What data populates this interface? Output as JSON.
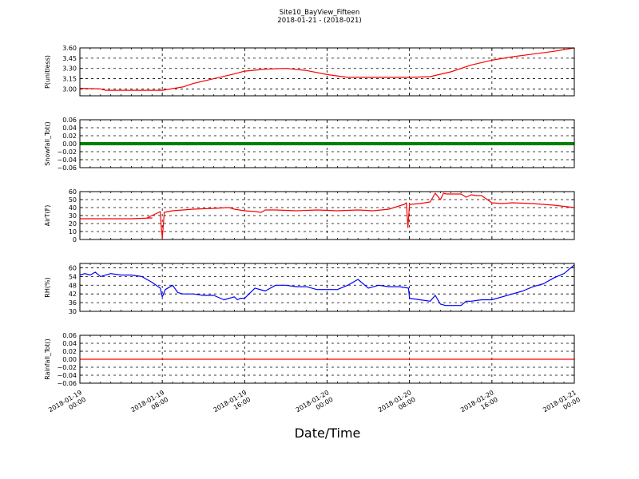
{
  "figure": {
    "title_line1": "Site10_BayView_Fifteen",
    "title_line2": "2018-01-21 - (2018-021)",
    "xlabel": "Date/Time"
  },
  "chart_data": [
    {
      "type": "line",
      "ylabel": "P(unitless)",
      "ylim": [
        2.9,
        3.6
      ],
      "yticks": [
        "3.60",
        "3.45",
        "3.30",
        "3.15",
        "3.00"
      ],
      "ytick_values": [
        3.6,
        3.45,
        3.3,
        3.15,
        3.0
      ],
      "grid": true,
      "color": "#ff0000",
      "x_hours": [
        0,
        2,
        2.5,
        3,
        4,
        6,
        8,
        10,
        11,
        13,
        15,
        16,
        18,
        20,
        22,
        24,
        26,
        28,
        30,
        32,
        34,
        36,
        38,
        40,
        42,
        44,
        46,
        48
      ],
      "values": [
        3.01,
        3.0,
        2.98,
        2.98,
        2.98,
        2.98,
        2.98,
        3.03,
        3.08,
        3.15,
        3.22,
        3.26,
        3.29,
        3.3,
        3.27,
        3.21,
        3.17,
        3.17,
        3.17,
        3.17,
        3.18,
        3.25,
        3.35,
        3.42,
        3.47,
        3.51,
        3.55,
        3.6
      ]
    },
    {
      "type": "line",
      "ylabel": "Snowfall_Tot()",
      "ylim": [
        -0.06,
        0.06
      ],
      "yticks": [
        "0.06",
        "0.04",
        "0.02",
        "0.00",
        "−0.02",
        "−0.04",
        "−0.06"
      ],
      "ytick_values": [
        0.06,
        0.04,
        0.02,
        0.0,
        -0.02,
        -0.04,
        -0.06
      ],
      "grid": true,
      "color": "#008000",
      "x_hours": [
        0,
        48
      ],
      "values": [
        0,
        0
      ]
    },
    {
      "type": "line",
      "ylabel": "AirT(F)",
      "ylim": [
        0,
        60
      ],
      "yticks": [
        "60",
        "50",
        "40",
        "30",
        "20",
        "10",
        "0"
      ],
      "ytick_values": [
        60,
        50,
        40,
        30,
        20,
        10,
        0
      ],
      "grid": true,
      "color": "#ff0000",
      "x_hours": [
        0,
        3,
        5,
        7,
        6.5,
        7.5,
        7.8,
        7.9,
        8.0,
        8.2,
        9,
        11,
        13,
        14.5,
        15,
        16,
        17,
        17.6,
        18,
        19,
        21,
        23,
        25,
        27,
        28.5,
        30,
        31.5,
        31.7,
        31.85,
        32,
        33,
        34,
        34.5,
        35,
        35.3,
        35.6,
        36,
        37,
        37.5,
        38,
        38.5,
        39,
        40,
        41,
        42,
        44,
        46,
        48
      ],
      "values": [
        26,
        26,
        26,
        27,
        27,
        33,
        35,
        15,
        2,
        34,
        36,
        38,
        39,
        40,
        38,
        36,
        35,
        34,
        37,
        37,
        36,
        37,
        36,
        37,
        36,
        38,
        44,
        46,
        15,
        44,
        45,
        47,
        58,
        50,
        58,
        57,
        57,
        57,
        53,
        56,
        55,
        55,
        46,
        45,
        46,
        45,
        43,
        40
      ]
    },
    {
      "type": "line",
      "ylabel": "RH(%)",
      "ylim": [
        30,
        63
      ],
      "yticks": [
        "60",
        "54",
        "48",
        "42",
        "36",
        "30"
      ],
      "ytick_values": [
        60,
        54,
        48,
        42,
        36,
        30
      ],
      "grid": true,
      "color": "#0000ff",
      "x_hours": [
        0,
        0.5,
        1,
        1.5,
        2,
        3,
        4,
        5,
        6,
        7,
        7.8,
        8,
        8.3,
        9,
        9.5,
        10,
        11,
        12,
        13,
        14,
        15,
        15.3,
        15.6,
        16,
        17,
        18,
        19,
        20,
        21,
        22,
        23,
        24,
        25,
        26,
        27,
        28,
        29,
        30,
        31,
        31.9,
        32,
        33,
        34,
        34.5,
        35,
        35.5,
        36,
        37,
        37.5,
        38,
        39,
        40,
        41,
        42,
        43,
        44,
        45,
        46,
        47,
        48
      ],
      "values": [
        55,
        56,
        55,
        57,
        54,
        56,
        55,
        55,
        54,
        50,
        46,
        40,
        45,
        48,
        43,
        42,
        42,
        41,
        41,
        38,
        40,
        38,
        39,
        39,
        46,
        44,
        48,
        48,
        47,
        47,
        45,
        45,
        45,
        48,
        52,
        46,
        48,
        47,
        47,
        46,
        39,
        38,
        37,
        41,
        35,
        34,
        34,
        34,
        37,
        37,
        38,
        38,
        40,
        42,
        44,
        47,
        49,
        53,
        56,
        62
      ]
    },
    {
      "type": "line",
      "ylabel": "Rainfall_Tot()",
      "ylim": [
        -0.06,
        0.06
      ],
      "yticks": [
        "0.06",
        "0.04",
        "0.02",
        "0.00",
        "−0.02",
        "−0.04",
        "−0.06"
      ],
      "ytick_values": [
        0.06,
        0.04,
        0.02,
        0.0,
        -0.02,
        -0.04,
        -0.06
      ],
      "grid": true,
      "color": "#ff0000",
      "x_hours": [
        0,
        48
      ],
      "values": [
        0,
        0
      ]
    }
  ],
  "x_axis": {
    "tick_hours": [
      0,
      8,
      16,
      24,
      32,
      40,
      48
    ],
    "tick_labels": [
      [
        "2018-01-19",
        "00:00"
      ],
      [
        "2018-01-19",
        "08:00"
      ],
      [
        "2018-01-19",
        "16:00"
      ],
      [
        "2018-01-20",
        "00:00"
      ],
      [
        "2018-01-20",
        "08:00"
      ],
      [
        "2018-01-20",
        "16:00"
      ],
      [
        "2018-01-21",
        "00:00"
      ]
    ]
  }
}
